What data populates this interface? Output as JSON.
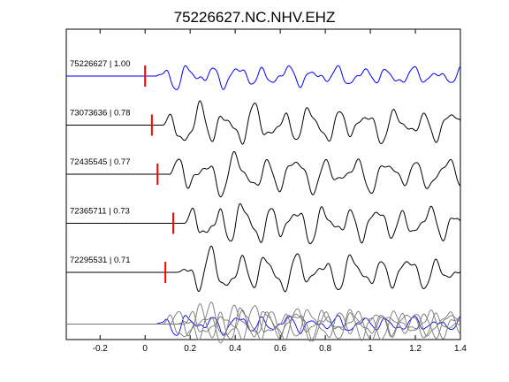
{
  "chart_data": {
    "type": "line",
    "title": "75226627.NC.NHV.EHZ",
    "xlabel": "",
    "ylabel": "",
    "xlim": [
      -0.35,
      1.4
    ],
    "xticks": [
      -0.2,
      0,
      0.2,
      0.4,
      0.6,
      0.8,
      1,
      1.2,
      1.4
    ],
    "xtick_labels": [
      "-0.2",
      "0",
      "0.2",
      "0.4",
      "0.6",
      "0.8",
      "1",
      "1.2",
      "1.4"
    ],
    "grid": false,
    "legend": "none",
    "colors": {
      "master": "#0000ff",
      "other": "#000000",
      "stack_other": "#777777",
      "pick": "#ff0000",
      "frame": "#000000"
    },
    "series": [
      {
        "label": "75226627 | 1.00",
        "pick_time": 0.0,
        "color": "master"
      },
      {
        "label": "73073636 | 0.78",
        "pick_time": 0.03,
        "color": "other"
      },
      {
        "label": "72435545 | 0.77",
        "pick_time": 0.055,
        "color": "other"
      },
      {
        "label": "72365711 | 0.73",
        "pick_time": 0.125,
        "color": "other"
      },
      {
        "label": "72295531 | 0.71",
        "pick_time": 0.09,
        "color": "other"
      }
    ]
  }
}
